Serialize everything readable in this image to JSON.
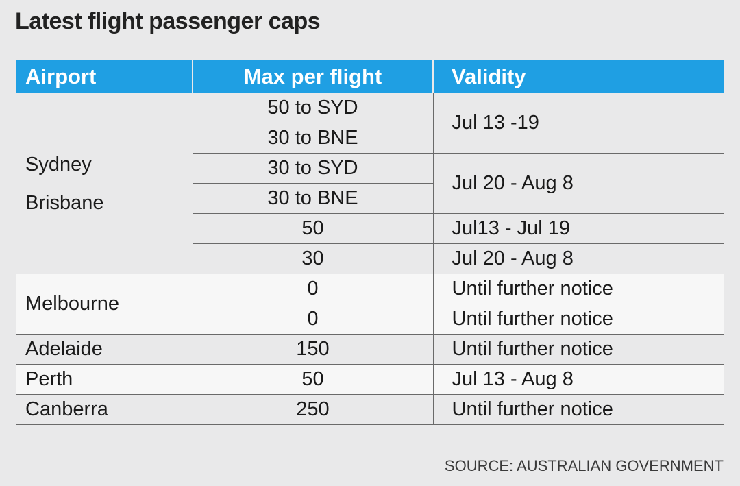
{
  "title": "Latest flight passenger caps",
  "headers": {
    "airport": "Airport",
    "cap": "Max per flight",
    "validity": "Validity"
  },
  "groups": {
    "sydney_brisbane": {
      "airport_lines": [
        "Sydney",
        "Brisbane"
      ],
      "rows": [
        {
          "cap": "50 to SYD",
          "validity": "Jul 13 -19"
        },
        {
          "cap": "30 to BNE"
        },
        {
          "cap": "30 to SYD",
          "validity": "Jul 20 - Aug 8"
        },
        {
          "cap": "30 to BNE"
        },
        {
          "cap": "50",
          "validity": "Jul13 - Jul 19"
        },
        {
          "cap": "30",
          "validity": "Jul 20 - Aug 8"
        }
      ]
    },
    "melbourne": {
      "airport": "Melbourne",
      "rows": [
        {
          "cap": "0",
          "validity": "Until further notice"
        },
        {
          "cap": "0",
          "validity": "Until further notice"
        }
      ]
    },
    "adelaide": {
      "airport": "Adelaide",
      "cap": "150",
      "validity": "Until further notice"
    },
    "perth": {
      "airport": "Perth",
      "cap": "50",
      "validity": "Jul 13 - Aug 8"
    },
    "canberra": {
      "airport": "Canberra",
      "cap": "250",
      "validity": "Until further notice"
    }
  },
  "source": "SOURCE: AUSTRALIAN GOVERNMENT",
  "colors": {
    "header_bg": "#1f9fe3",
    "page_bg": "#e9e9ea",
    "row_alt_bg": "#f7f7f7"
  }
}
